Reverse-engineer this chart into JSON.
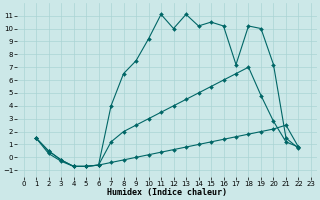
{
  "xlabel": "Humidex (Indice chaleur)",
  "background_color": "#cce8e8",
  "line_color": "#006666",
  "grid_color": "#aad4d4",
  "series": [
    {
      "x": [
        1,
        2,
        3,
        4,
        5,
        6,
        7,
        8,
        9,
        10,
        11,
        12,
        13,
        14,
        15,
        16,
        17,
        18,
        19,
        20,
        21,
        22
      ],
      "y": [
        1.5,
        0.5,
        -0.2,
        -0.7,
        -0.7,
        -0.6,
        4.0,
        6.5,
        7.5,
        9.2,
        11.1,
        10.0,
        11.1,
        10.2,
        10.5,
        10.2,
        7.2,
        10.2,
        10.0,
        7.2,
        1.5,
        0.7
      ]
    },
    {
      "x": [
        1,
        2,
        3,
        4,
        5,
        6,
        7,
        8,
        9,
        10,
        11,
        12,
        13,
        14,
        15,
        16,
        17,
        18,
        19,
        20,
        21,
        22
      ],
      "y": [
        1.5,
        0.5,
        -0.2,
        -0.7,
        -0.7,
        -0.6,
        1.2,
        2.0,
        2.5,
        3.0,
        3.5,
        4.0,
        4.5,
        5.0,
        5.5,
        6.0,
        6.5,
        7.0,
        4.8,
        2.8,
        1.2,
        0.8
      ]
    },
    {
      "x": [
        1,
        2,
        3,
        4,
        5,
        6,
        7,
        8,
        9,
        10,
        11,
        12,
        13,
        14,
        15,
        16,
        17,
        18,
        19,
        20,
        21,
        22
      ],
      "y": [
        1.5,
        0.3,
        -0.3,
        -0.7,
        -0.7,
        -0.6,
        -0.4,
        -0.2,
        0.0,
        0.2,
        0.4,
        0.6,
        0.8,
        1.0,
        1.2,
        1.4,
        1.6,
        1.8,
        2.0,
        2.2,
        2.5,
        0.8
      ]
    }
  ],
  "ylim": [
    -1.5,
    12.0
  ],
  "xlim": [
    -0.5,
    23.5
  ],
  "yticks": [
    -1,
    0,
    1,
    2,
    3,
    4,
    5,
    6,
    7,
    8,
    9,
    10,
    11
  ],
  "xticks": [
    0,
    1,
    2,
    3,
    4,
    5,
    6,
    7,
    8,
    9,
    10,
    11,
    12,
    13,
    14,
    15,
    16,
    17,
    18,
    19,
    20,
    21,
    22,
    23
  ],
  "tick_fontsize": 5,
  "xlabel_fontsize": 6
}
